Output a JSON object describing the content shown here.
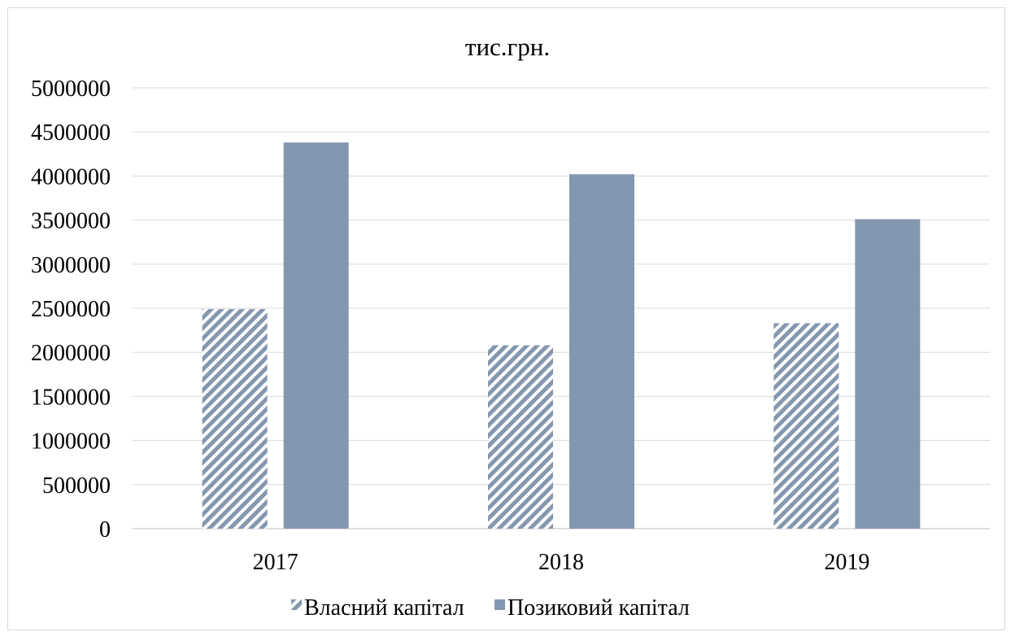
{
  "chart_data": {
    "type": "bar",
    "title": "тис.грн.",
    "xlabel": "",
    "ylabel": "",
    "categories": [
      "2017",
      "2018",
      "2019"
    ],
    "series": [
      {
        "name": "Власний капітал",
        "values": [
          2490000,
          2080000,
          2330000
        ],
        "color": "#8497b0",
        "pattern": "diagonal-stripes"
      },
      {
        "name": "Позиковий капітал",
        "values": [
          4380000,
          4020000,
          3510000
        ],
        "color": "#8497b0",
        "pattern": "solid"
      }
    ],
    "ylim": [
      0,
      5000000
    ],
    "yticks": [
      "0",
      "500000",
      "1000000",
      "1500000",
      "2000000",
      "2500000",
      "3000000",
      "3500000",
      "4000000",
      "4500000",
      "5000000"
    ],
    "grid": true,
    "legend": "bottom"
  }
}
